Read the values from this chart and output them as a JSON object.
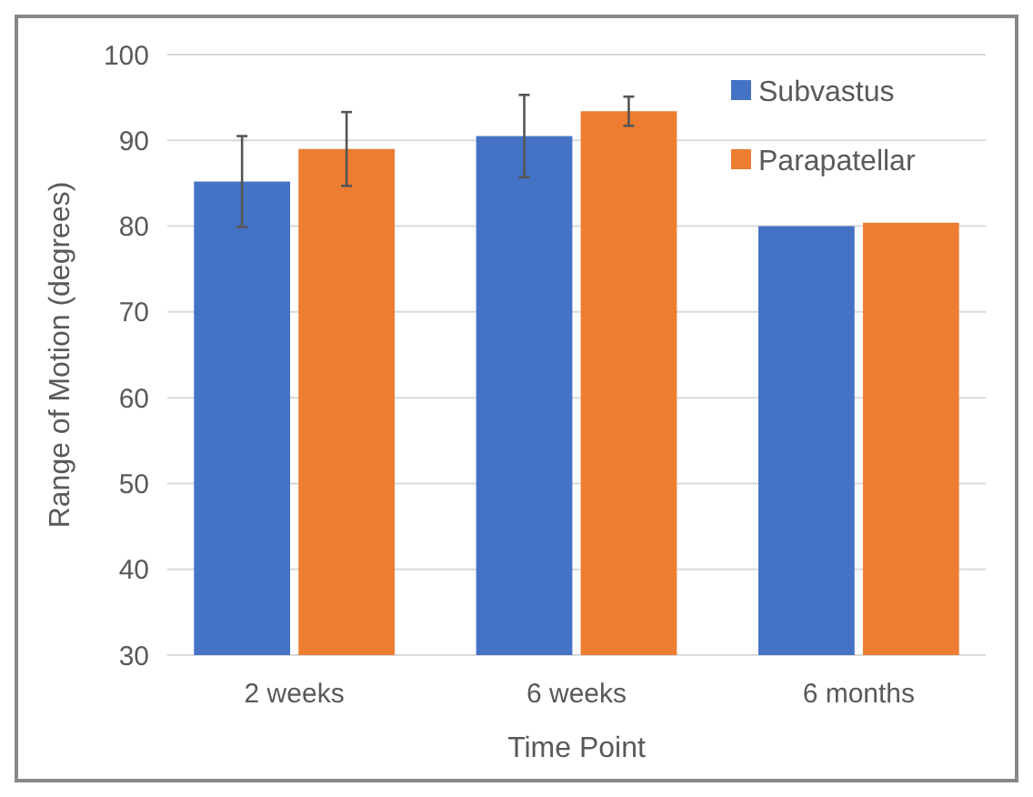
{
  "chart_data": {
    "type": "bar",
    "xlabel": "Time Point",
    "ylabel": "Range of Motion (degrees)",
    "categories": [
      "2 weeks",
      "6 weeks",
      "6 months"
    ],
    "series": [
      {
        "name": "Subvastus",
        "color": "#4472c4",
        "values": [
          85.2,
          90.5,
          80
        ],
        "errors": [
          5.3,
          4.8,
          null
        ]
      },
      {
        "name": "Parapatellar",
        "color": "#ed7d31",
        "values": [
          89,
          93.4,
          80.4
        ],
        "errors": [
          4.3,
          1.7,
          null
        ]
      }
    ],
    "ylim": [
      30,
      100
    ],
    "yticks": [
      30,
      40,
      50,
      60,
      70,
      80,
      90,
      100
    ],
    "grid": "y",
    "legend": "top right"
  }
}
